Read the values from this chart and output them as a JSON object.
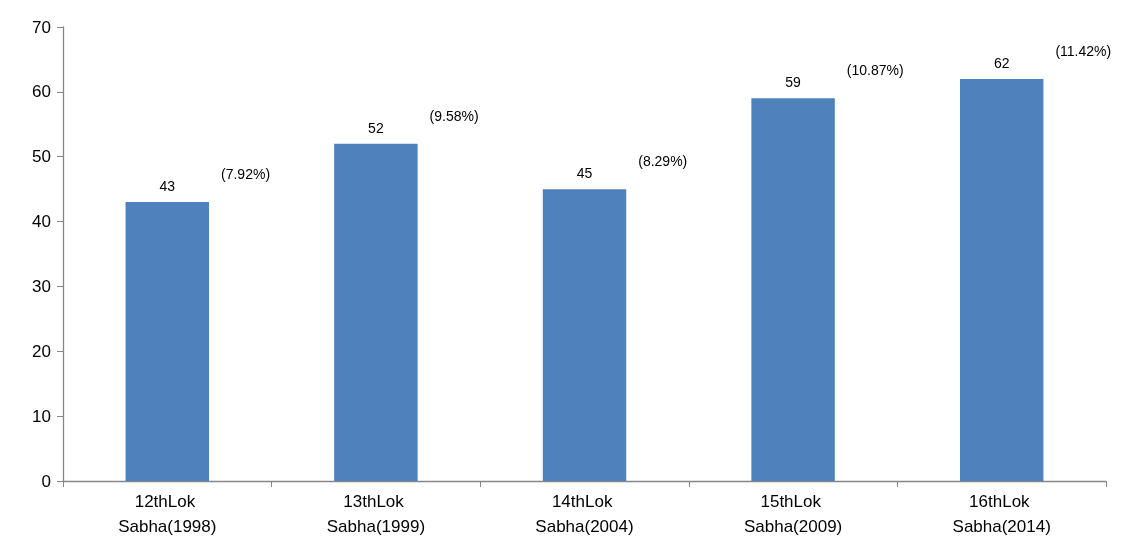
{
  "chart_data": {
    "type": "bar",
    "categories": [
      "12thLok Sabha(1998)",
      "13thLok Sabha(1999)",
      "14thLok Sabha(2004)",
      "15thLok Sabha(2009)",
      "16thLok Sabha(2014)"
    ],
    "values": [
      43,
      52,
      45,
      59,
      62
    ],
    "color": "#4f81bd",
    "ylim": [
      0,
      70
    ],
    "yticks": [
      0,
      10,
      20,
      30,
      40,
      50,
      60,
      70
    ],
    "grid": false,
    "data_labels": true,
    "annotations": [
      "(7.92%)",
      "(9.58%)",
      "(8.29%)",
      "(10.87%)",
      "(11.42%)"
    ]
  }
}
